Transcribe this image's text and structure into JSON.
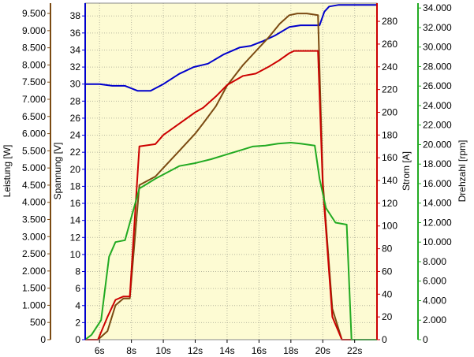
{
  "chart_data": {
    "type": "line",
    "title": "",
    "background": "#fdfbd3",
    "grid": true,
    "x": {
      "label": "",
      "unit": "s",
      "range": [
        5.1,
        23.4
      ],
      "ticks": [
        6,
        8,
        10,
        12,
        14,
        16,
        18,
        20,
        22
      ],
      "tick_labels": [
        "6s",
        "8s",
        "10s",
        "12s",
        "14s",
        "16s",
        "18s",
        "20s",
        "22s"
      ]
    },
    "axes": [
      {
        "id": "leistung",
        "label": "Leistung [W]",
        "side": "left",
        "color": "#7b4a12",
        "range": [
          0,
          9800
        ],
        "ticks": [
          0,
          500,
          1000,
          1500,
          2000,
          2500,
          3000,
          3500,
          4000,
          4500,
          5000,
          5500,
          6000,
          6500,
          7000,
          7500,
          8000,
          8500,
          9000,
          9500
        ],
        "tick_labels": [
          "0",
          "500",
          "1.000",
          "1.500",
          "2.000",
          "2.500",
          "3.000",
          "3.500",
          "4.000",
          "4.500",
          "5.000",
          "5.500",
          "6.000",
          "6.500",
          "7.000",
          "7.500",
          "8.000",
          "8.500",
          "9.000",
          "9.500"
        ]
      },
      {
        "id": "spannung",
        "label": "Spannung [V]",
        "side": "left",
        "color": "#0000cc",
        "range": [
          0,
          39.5
        ],
        "ticks": [
          0,
          2,
          4,
          6,
          8,
          10,
          12,
          14,
          16,
          18,
          20,
          22,
          24,
          26,
          28,
          30,
          32,
          34,
          36,
          38
        ],
        "tick_labels": [
          "0",
          "2",
          "4",
          "6",
          "8",
          "10",
          "12",
          "14",
          "16",
          "18",
          "20",
          "22",
          "24",
          "26",
          "28",
          "30",
          "32",
          "34",
          "36",
          "38"
        ]
      },
      {
        "id": "strom",
        "label": "Strom [A]",
        "side": "right",
        "color": "#cc0000",
        "range": [
          0,
          296
        ],
        "ticks": [
          0,
          20,
          40,
          60,
          80,
          100,
          120,
          140,
          160,
          180,
          200,
          220,
          240,
          260,
          280
        ],
        "tick_labels": [
          "0",
          "20",
          "40",
          "60",
          "80",
          "100",
          "120",
          "140",
          "160",
          "180",
          "200",
          "220",
          "240",
          "260",
          "280"
        ]
      },
      {
        "id": "drehzahl",
        "label": "Drehzahl [rpm]",
        "side": "right",
        "color": "#22aa22",
        "range": [
          0,
          34500
        ],
        "ticks": [
          0,
          2000,
          4000,
          6000,
          8000,
          10000,
          12000,
          14000,
          16000,
          18000,
          20000,
          22000,
          24000,
          26000,
          28000,
          30000,
          32000,
          34000
        ],
        "tick_labels": [
          "0",
          "2.000",
          "4.000",
          "6.000",
          "8.000",
          "10.000",
          "12.000",
          "14.000",
          "16.000",
          "18.000",
          "20.000",
          "22.000",
          "24.000",
          "26.000",
          "28.000",
          "30.000",
          "32.000",
          "34.000"
        ]
      }
    ],
    "series": [
      {
        "axis": "spannung",
        "color": "#0000cc",
        "x": [
          5.1,
          6.0,
          6.8,
          7.6,
          8.4,
          9.2,
          10.0,
          11.0,
          11.9,
          12.8,
          13.8,
          14.8,
          15.5,
          16.2,
          17.0,
          17.9,
          18.6,
          19.4,
          19.8,
          20.1,
          20.4,
          21.0,
          22.0,
          23.4
        ],
        "y": [
          30.0,
          30.0,
          29.8,
          29.8,
          29.2,
          29.2,
          30.0,
          31.2,
          32.0,
          32.4,
          33.5,
          34.3,
          34.5,
          35.0,
          35.7,
          36.7,
          36.9,
          36.9,
          36.9,
          38.5,
          39.1,
          39.3,
          39.3,
          39.3
        ]
      },
      {
        "axis": "leistung",
        "color": "#7b4a12",
        "x": [
          5.1,
          5.9,
          6.5,
          7.0,
          7.5,
          7.9,
          8.5,
          9.5,
          10.0,
          11.0,
          12.0,
          12.5,
          13.3,
          14.0,
          15.0,
          15.8,
          16.6,
          17.3,
          17.9,
          18.4,
          19.0,
          19.7,
          20.0,
          20.6,
          21.2,
          21.8,
          23.4
        ],
        "y": [
          0,
          0,
          250,
          1000,
          1200,
          1200,
          4500,
          4750,
          5000,
          5500,
          6000,
          6300,
          6800,
          7400,
          8000,
          8400,
          8800,
          9200,
          9450,
          9500,
          9500,
          9450,
          4600,
          900,
          0,
          0,
          0
        ]
      },
      {
        "axis": "strom",
        "color": "#cc0000",
        "x": [
          5.1,
          5.9,
          6.5,
          7.0,
          7.5,
          7.9,
          8.5,
          9.5,
          10.0,
          11.0,
          12.0,
          12.5,
          13.3,
          14.0,
          15.0,
          15.8,
          16.6,
          17.3,
          17.9,
          18.2,
          19.0,
          19.7,
          20.0,
          20.6,
          21.2,
          21.8,
          23.4
        ],
        "y": [
          0,
          0,
          20,
          35,
          38,
          38,
          170,
          172,
          180,
          190,
          200,
          204,
          214,
          224,
          232,
          234,
          240,
          246,
          252,
          254,
          254,
          254,
          135,
          20,
          0,
          0,
          0
        ]
      },
      {
        "axis": "drehzahl",
        "color": "#22aa22",
        "x": [
          5.1,
          5.5,
          6.1,
          6.6,
          7.0,
          7.6,
          8.5,
          9.0,
          9.5,
          11.0,
          12.0,
          13.0,
          14.0,
          15.0,
          15.6,
          16.4,
          17.2,
          18.0,
          18.6,
          19.5,
          19.8,
          20.2,
          20.8,
          21.5,
          21.8,
          23.4
        ],
        "y": [
          0,
          500,
          2000,
          8500,
          10000,
          10200,
          15500,
          16000,
          16500,
          17800,
          18100,
          18500,
          19000,
          19500,
          19800,
          19900,
          20100,
          20200,
          20100,
          19900,
          16500,
          13500,
          12000,
          11800,
          0,
          0
        ]
      }
    ]
  }
}
